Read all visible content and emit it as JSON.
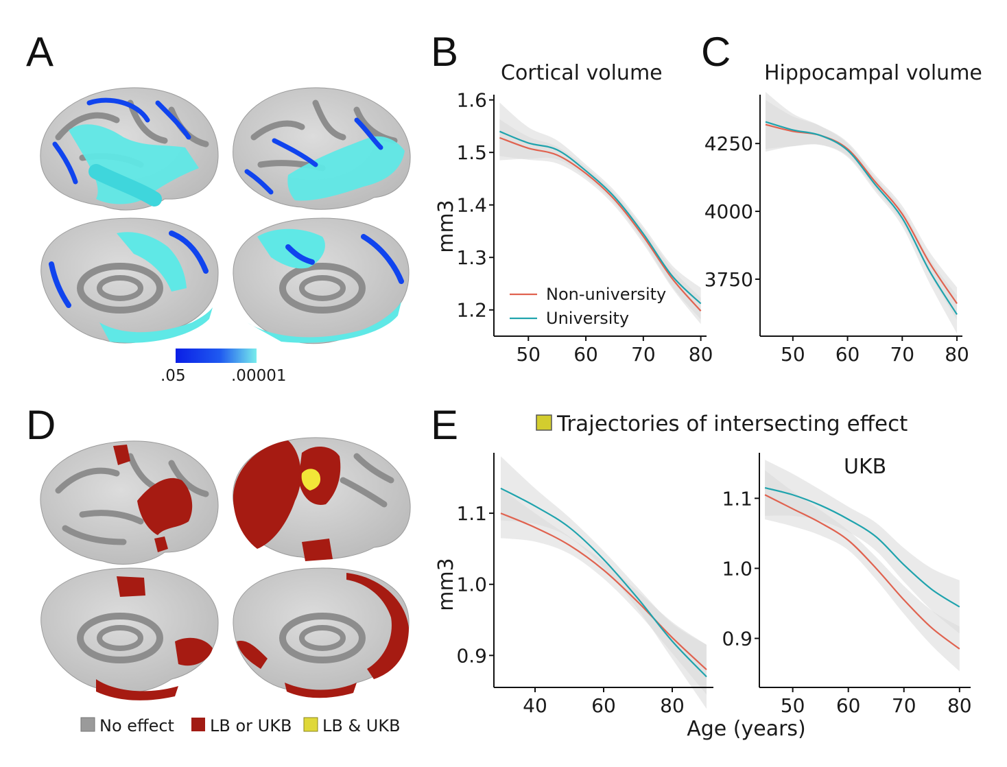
{
  "panels": {
    "a": {
      "label": "A",
      "colorbar": {
        "min_label": ".05",
        "max_label": ".00001",
        "colors": [
          "#0a1ee6",
          "#6ee6ea"
        ]
      }
    },
    "b": {
      "label": "B"
    },
    "c": {
      "label": "C"
    },
    "d": {
      "label": "D"
    },
    "e": {
      "label": "E",
      "heading": "Trajectories of intersecting effect",
      "heading_swatch_color": "#d3cd2e"
    }
  },
  "legend_d": [
    {
      "label": "No effect",
      "color": "#9a9a9a"
    },
    {
      "label": "LB or UKB",
      "color": "#a21c14"
    },
    {
      "label": "LB & UKB",
      "color": "#dfd839"
    }
  ],
  "colors": {
    "non_university": "#e0624f",
    "university": "#1fa3ad",
    "ci_band": "#d8d8d8",
    "cortex_light": "#d4d4d4",
    "cortex_dark": "#8d8d8d",
    "cyan": "#5fe8e6",
    "blue": "#1044ee",
    "red": "#a61b12",
    "yellow": "#f2e638"
  },
  "chart_data": [
    {
      "id": "B",
      "type": "line",
      "title": "Cortical volume",
      "xlabel": "",
      "ylabel": "mm3",
      "xlim": [
        44,
        81
      ],
      "ylim": [
        1.15,
        1.61
      ],
      "xticks": [
        50,
        60,
        70,
        80
      ],
      "yticks": [
        1.2,
        1.3,
        1.4,
        1.5,
        1.6
      ],
      "ytick_labels": [
        "1.2",
        "1.3",
        "1.4",
        "1.5",
        "1.6"
      ],
      "legend_position": "bottom-left",
      "series": [
        {
          "name": "Non-university",
          "x": [
            45,
            50,
            55,
            60,
            65,
            70,
            75,
            80
          ],
          "y": [
            1.528,
            1.508,
            1.495,
            1.46,
            1.41,
            1.34,
            1.26,
            1.198
          ],
          "ci": [
            0.035,
            0.022,
            0.016,
            0.012,
            0.012,
            0.014,
            0.018,
            0.025
          ]
        },
        {
          "name": "University",
          "x": [
            45,
            50,
            55,
            60,
            65,
            70,
            75,
            80
          ],
          "y": [
            1.54,
            1.518,
            1.505,
            1.465,
            1.415,
            1.345,
            1.265,
            1.212
          ],
          "ci": [
            0.055,
            0.03,
            0.018,
            0.012,
            0.012,
            0.014,
            0.02,
            0.03
          ]
        }
      ]
    },
    {
      "id": "C",
      "type": "line",
      "title": "Hippocampal volume",
      "xlabel": "",
      "ylabel": "",
      "xlim": [
        44,
        81
      ],
      "ylim": [
        3540,
        4430
      ],
      "xticks": [
        50,
        60,
        70,
        80
      ],
      "yticks": [
        3750,
        4000,
        4250
      ],
      "ytick_labels": [
        "3750",
        "4000",
        "4250"
      ],
      "series": [
        {
          "name": "Non-university",
          "x": [
            45,
            50,
            55,
            60,
            65,
            70,
            75,
            80
          ],
          "y": [
            4320,
            4295,
            4280,
            4230,
            4110,
            3990,
            3810,
            3660
          ],
          "ci": [
            90,
            55,
            35,
            25,
            25,
            30,
            40,
            60
          ]
        },
        {
          "name": "University",
          "x": [
            45,
            50,
            55,
            60,
            65,
            70,
            75,
            80
          ],
          "y": [
            4330,
            4300,
            4280,
            4225,
            4100,
            3975,
            3780,
            3620
          ],
          "ci": [
            110,
            60,
            35,
            25,
            25,
            30,
            45,
            70
          ]
        }
      ]
    },
    {
      "id": "E-left",
      "type": "line",
      "title": "",
      "xlabel": "",
      "ylabel": "mm3",
      "xlim": [
        28,
        92
      ],
      "ylim": [
        0.855,
        1.185
      ],
      "xticks": [
        40,
        60,
        80
      ],
      "yticks": [
        0.9,
        1.0,
        1.1
      ],
      "ytick_labels": [
        "0.9",
        "1.0",
        "1.1"
      ],
      "series": [
        {
          "name": "Non-university",
          "x": [
            30,
            40,
            50,
            60,
            70,
            80,
            90
          ],
          "y": [
            1.1,
            1.08,
            1.055,
            1.02,
            0.975,
            0.925,
            0.88
          ],
          "ci": [
            0.035,
            0.02,
            0.012,
            0.012,
            0.015,
            0.022,
            0.035
          ]
        },
        {
          "name": "University",
          "x": [
            30,
            40,
            50,
            60,
            70,
            80,
            90
          ],
          "y": [
            1.135,
            1.11,
            1.08,
            1.035,
            0.98,
            0.92,
            0.87
          ],
          "ci": [
            0.045,
            0.025,
            0.014,
            0.012,
            0.015,
            0.025,
            0.045
          ]
        }
      ]
    },
    {
      "id": "E-right",
      "type": "line",
      "title": "UKB",
      "xlabel": "Age (years)",
      "ylabel": "",
      "xlim": [
        44,
        82
      ],
      "ylim": [
        0.83,
        1.165
      ],
      "xticks": [
        50,
        60,
        70,
        80
      ],
      "yticks": [
        0.9,
        1.0,
        1.1
      ],
      "ytick_labels": [
        "0.9",
        "1.0",
        "1.1"
      ],
      "series": [
        {
          "name": "Non-university",
          "x": [
            45,
            50,
            55,
            60,
            65,
            70,
            75,
            80
          ],
          "y": [
            1.105,
            1.085,
            1.065,
            1.04,
            1.0,
            0.955,
            0.915,
            0.885
          ],
          "ci": [
            0.035,
            0.025,
            0.018,
            0.014,
            0.016,
            0.02,
            0.025,
            0.032
          ]
        },
        {
          "name": "University",
          "x": [
            45,
            50,
            55,
            60,
            65,
            70,
            75,
            80
          ],
          "y": [
            1.115,
            1.105,
            1.09,
            1.07,
            1.045,
            1.005,
            0.97,
            0.945
          ],
          "ci": [
            0.04,
            0.03,
            0.022,
            0.018,
            0.02,
            0.024,
            0.03,
            0.038
          ]
        }
      ]
    }
  ]
}
